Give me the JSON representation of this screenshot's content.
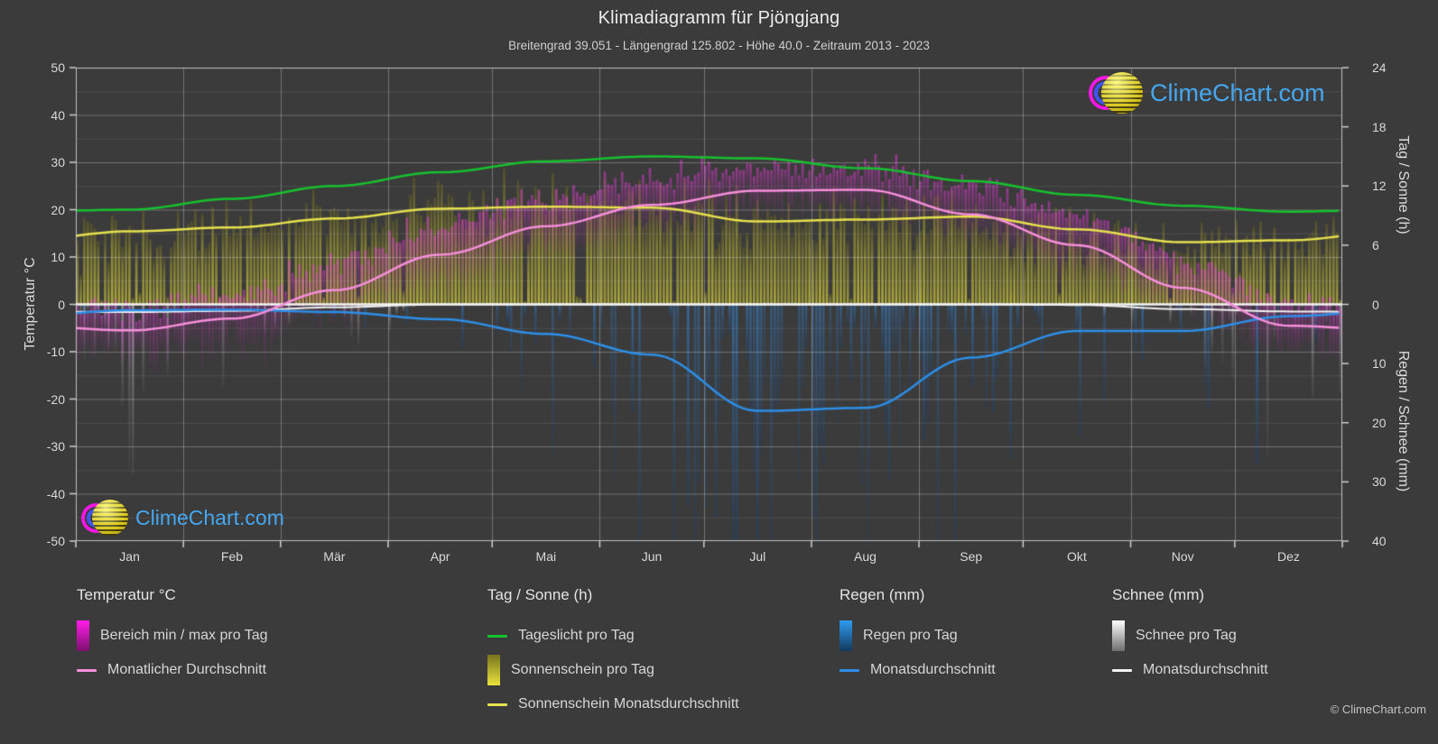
{
  "header": {
    "title": "Klimadiagramm für Pjöngjang",
    "subtitle": "Breitengrad 39.051 - Längengrad 125.802 - Höhe 40.0 - Zeitraum 2013 - 2023"
  },
  "watermark": {
    "text": "ClimeChart.com",
    "copyright": "© ClimeChart.com",
    "text_color": "#45a7f0"
  },
  "axes": {
    "left": {
      "label": "Temperatur °C",
      "ticks": [
        50,
        40,
        30,
        20,
        10,
        0,
        -10,
        -20,
        -30,
        -40,
        -50
      ],
      "range": [
        -50,
        50
      ]
    },
    "right_top": {
      "label": "Tag / Sonne (h)",
      "ticks": [
        24,
        18,
        12,
        6,
        0
      ],
      "range": [
        0,
        24
      ]
    },
    "right_bottom": {
      "label": "Regen / Schnee (mm)",
      "ticks": [
        10,
        20,
        30,
        40
      ],
      "range": [
        0,
        40
      ],
      "inverted": true
    },
    "x": {
      "months": [
        "Jan",
        "Feb",
        "Mär",
        "Apr",
        "Mai",
        "Jun",
        "Jul",
        "Aug",
        "Sep",
        "Okt",
        "Nov",
        "Dez"
      ]
    }
  },
  "chart_data": {
    "type": "climate-composite (daily bars + monthly average lines)",
    "title": "Klimadiagramm für Pjöngjang",
    "categories": [
      "Jan",
      "Feb",
      "Mär",
      "Apr",
      "Mai",
      "Jun",
      "Jul",
      "Aug",
      "Sep",
      "Okt",
      "Nov",
      "Dez"
    ],
    "ylim_temperature_c": [
      -50,
      50
    ],
    "ylim_sun_hours": [
      0,
      24
    ],
    "ylim_precip_mm": [
      0,
      40
    ],
    "grid": true,
    "legend_position": "bottom",
    "series": [
      {
        "key": "daylight",
        "name": "Tageslicht pro Tag (h)",
        "type": "line",
        "color": "#17c22e",
        "axis": "sun",
        "values": [
          9.6,
          10.7,
          12.0,
          13.4,
          14.5,
          15.0,
          14.8,
          13.8,
          12.5,
          11.1,
          10.0,
          9.4
        ]
      },
      {
        "key": "sunshine_avg",
        "name": "Sonnenschein Monatsdurchschnitt (h)",
        "type": "line",
        "color": "#e6e14e",
        "axis": "sun",
        "values": [
          7.4,
          7.8,
          8.7,
          9.7,
          9.9,
          9.8,
          8.4,
          8.6,
          8.9,
          7.6,
          6.3,
          6.5
        ]
      },
      {
        "key": "temp_avg",
        "name": "Monatlicher Durchschnitt Temperatur (°C)",
        "type": "line",
        "color": "#f78fdc",
        "axis": "temp",
        "values": [
          -5.5,
          -3.0,
          3.0,
          10.5,
          16.5,
          21.0,
          24.0,
          24.2,
          19.0,
          12.5,
          3.5,
          -4.5
        ]
      },
      {
        "key": "temp_max_daily",
        "name": "Temperatur max pro Tag, Monatsmittel (°C)",
        "type": "bar-envelope",
        "color": "#d22cc4",
        "axis": "temp",
        "values": [
          -1.0,
          2.0,
          9.0,
          17.0,
          23.0,
          26.5,
          28.5,
          29.0,
          25.0,
          18.5,
          9.0,
          0.0
        ]
      },
      {
        "key": "temp_min_daily",
        "name": "Temperatur min pro Tag, Monatsmittel (°C)",
        "type": "bar-envelope",
        "color": "#d22cc4",
        "axis": "temp",
        "values": [
          -11.0,
          -8.5,
          -2.5,
          4.5,
          10.5,
          16.0,
          20.5,
          20.5,
          13.5,
          7.0,
          -1.5,
          -9.5
        ]
      },
      {
        "key": "sunshine_daily",
        "name": "Sonnenschein pro Tag, Monatsmittel (h)",
        "type": "bar",
        "color": "#b9b932",
        "axis": "sun",
        "values": [
          7.4,
          7.8,
          8.7,
          9.7,
          9.9,
          9.8,
          8.4,
          8.6,
          8.9,
          7.6,
          6.3,
          6.5
        ]
      },
      {
        "key": "rain_avg",
        "name": "Regen Monatsdurchschnitt (mm)",
        "type": "line",
        "color": "#2d8fe8",
        "axis": "precip",
        "values": [
          1.0,
          0.9,
          1.3,
          2.5,
          5.0,
          8.5,
          18.0,
          17.5,
          9.0,
          4.5,
          4.5,
          2.0
        ]
      },
      {
        "key": "snow_avg",
        "name": "Schnee Monatsdurchschnitt (mm)",
        "type": "line",
        "color": "#f2f2f2",
        "axis": "precip",
        "values": [
          1.3,
          1.1,
          0.5,
          0.0,
          0.0,
          0.0,
          0.0,
          0.0,
          0.0,
          0.1,
          0.8,
          1.2
        ]
      }
    ]
  },
  "legend": {
    "groups": [
      {
        "title": "Temperatur °C",
        "items": [
          {
            "swatch": "bar",
            "gradient": [
              "#ff1ce8",
              "#7c1070"
            ],
            "label": "Bereich min / max pro Tag"
          },
          {
            "swatch": "line",
            "color": "#f78fdc",
            "label": "Monatlicher Durchschnitt"
          }
        ]
      },
      {
        "title": "Tag / Sonne (h)",
        "items": [
          {
            "swatch": "line",
            "color": "#17c22e",
            "label": "Tageslicht pro Tag"
          },
          {
            "swatch": "bar",
            "gradient": [
              "#77741f",
              "#eae43c"
            ],
            "label": "Sonnenschein pro Tag"
          },
          {
            "swatch": "line",
            "color": "#e6e14e",
            "label": "Sonnenschein Monatsdurchschnitt"
          }
        ]
      },
      {
        "title": "Regen (mm)",
        "items": [
          {
            "swatch": "bar",
            "gradient": [
              "#2e9bf0",
              "#123a5e"
            ],
            "label": "Regen pro Tag"
          },
          {
            "swatch": "line",
            "color": "#2d8fe8",
            "label": "Monatsdurchschnitt"
          }
        ]
      },
      {
        "title": "Schnee (mm)",
        "items": [
          {
            "swatch": "bar",
            "gradient": [
              "#ffffff",
              "#6e6e6e"
            ],
            "label": "Schnee pro Tag"
          },
          {
            "swatch": "line",
            "color": "#f2f2f2",
            "label": "Monatsdurchschnitt"
          }
        ]
      }
    ]
  },
  "colors": {
    "background": "#3b3b3b",
    "grid_major": "rgba(255,255,255,0.28)",
    "grid_minor": "rgba(255,255,255,0.10)",
    "zero_line": "#f5f5f5",
    "sunshine_bar": "#b9b932",
    "temp_bar": "#d22cc4",
    "rain_bar": "#2470b4",
    "snow_bar": "#c8c8c8"
  }
}
